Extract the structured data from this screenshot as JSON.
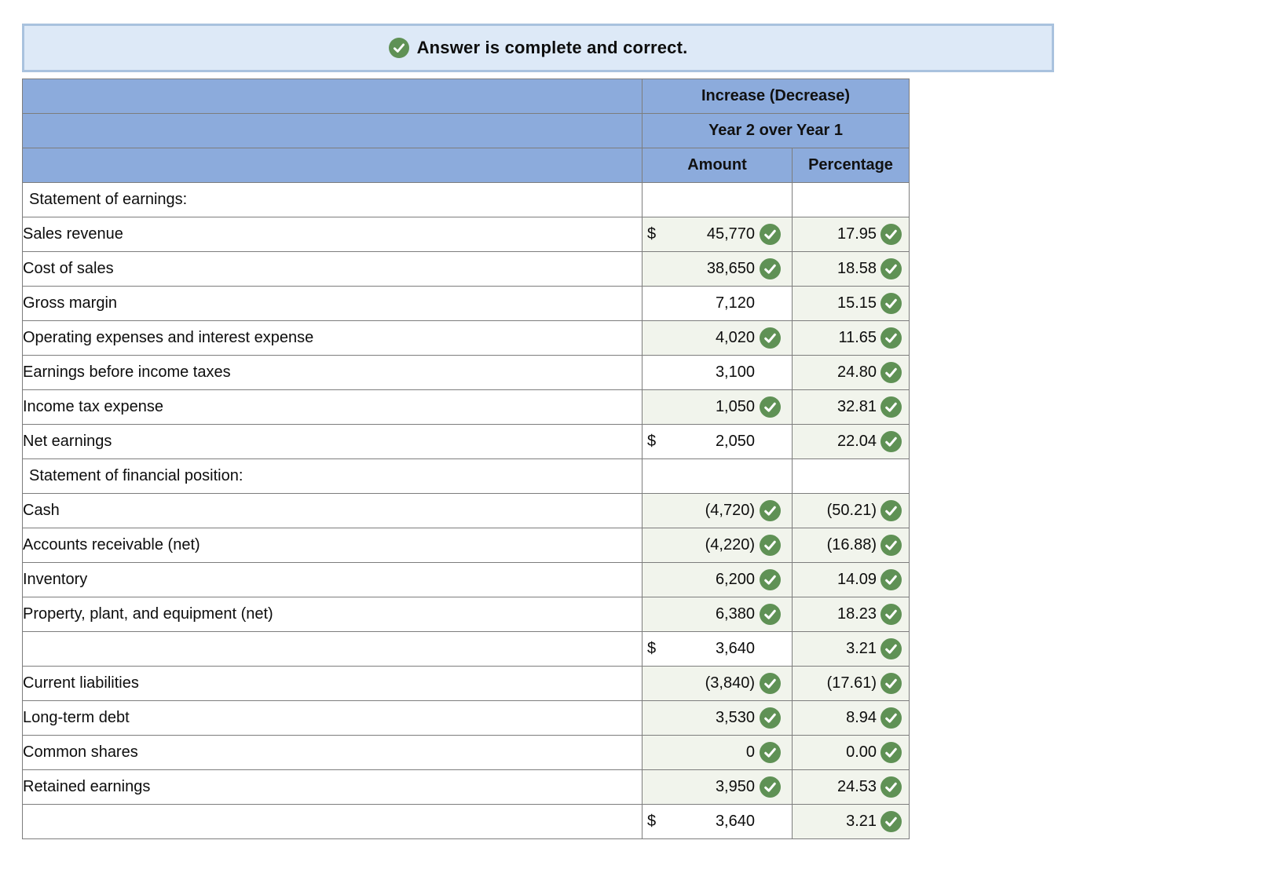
{
  "banner": {
    "icon": "check-circle-icon",
    "text": "Answer is complete and correct."
  },
  "colors": {
    "header_blue": "#8cabdc",
    "banner_bg": "#dde9f7",
    "banner_border": "#a9c2de",
    "input_cell_bg": "#f1f4ec",
    "check_green": "#5f9155",
    "grid_gray": "#7d7d7d"
  },
  "table": {
    "header": {
      "increase_decrease": "Increase (Decrease)",
      "year_over_year": "Year 2 over Year 1",
      "amount": "Amount",
      "percentage": "Percentage"
    },
    "rows": [
      {
        "label": "Statement of earnings:",
        "section": true,
        "dollar": "",
        "amount": "",
        "amount_check": false,
        "amount_style": "blank",
        "amount_border": "none",
        "pct": "",
        "pct_check": false,
        "pct_style": "blank"
      },
      {
        "label": "Sales revenue",
        "section": false,
        "dollar": "$",
        "amount": "45,770",
        "amount_check": true,
        "amount_style": "input",
        "amount_border": "none",
        "pct": "17.95",
        "pct_check": true,
        "pct_style": "input"
      },
      {
        "label": "Cost of sales",
        "section": false,
        "dollar": "",
        "amount": "38,650",
        "amount_check": true,
        "amount_style": "input",
        "amount_border": "single",
        "pct": "18.58",
        "pct_check": true,
        "pct_style": "input"
      },
      {
        "label": "Gross margin",
        "section": false,
        "dollar": "",
        "amount": "7,120",
        "amount_check": false,
        "amount_style": "plain",
        "amount_border": "none",
        "pct": "15.15",
        "pct_check": true,
        "pct_style": "input"
      },
      {
        "label": "Operating expenses and interest expense",
        "section": false,
        "dollar": "",
        "amount": "4,020",
        "amount_check": true,
        "amount_style": "input",
        "amount_border": "single",
        "pct": "11.65",
        "pct_check": true,
        "pct_style": "input"
      },
      {
        "label": "Earnings before income taxes",
        "section": false,
        "dollar": "",
        "amount": "3,100",
        "amount_check": false,
        "amount_style": "plain",
        "amount_border": "none",
        "pct": "24.80",
        "pct_check": true,
        "pct_style": "input"
      },
      {
        "label": "Income tax expense",
        "section": false,
        "dollar": "",
        "amount": "1,050",
        "amount_check": true,
        "amount_style": "input",
        "amount_border": "single",
        "pct": "32.81",
        "pct_check": true,
        "pct_style": "input"
      },
      {
        "label": "Net earnings",
        "section": false,
        "dollar": "$",
        "amount": "2,050",
        "amount_check": false,
        "amount_style": "plain",
        "amount_border": "double",
        "pct": "22.04",
        "pct_check": true,
        "pct_style": "input"
      },
      {
        "label": "Statement of financial position:",
        "section": true,
        "dollar": "",
        "amount": "",
        "amount_check": false,
        "amount_style": "blank",
        "amount_border": "none",
        "pct": "",
        "pct_check": false,
        "pct_style": "blank"
      },
      {
        "label": "Cash",
        "section": false,
        "dollar": "",
        "amount": "(4,720)",
        "amount_check": true,
        "amount_style": "input",
        "amount_border": "none",
        "pct": "(50.21)",
        "pct_check": true,
        "pct_style": "input"
      },
      {
        "label": "Accounts receivable (net)",
        "section": false,
        "dollar": "",
        "amount": "(4,220)",
        "amount_check": true,
        "amount_style": "input",
        "amount_border": "none",
        "pct": "(16.88)",
        "pct_check": true,
        "pct_style": "input"
      },
      {
        "label": "Inventory",
        "section": false,
        "dollar": "",
        "amount": "6,200",
        "amount_check": true,
        "amount_style": "input",
        "amount_border": "none",
        "pct": "14.09",
        "pct_check": true,
        "pct_style": "input"
      },
      {
        "label": "Property, plant, and equipment (net)",
        "section": false,
        "dollar": "",
        "amount": "6,380",
        "amount_check": true,
        "amount_style": "input",
        "amount_border": "single",
        "pct": "18.23",
        "pct_check": true,
        "pct_style": "input"
      },
      {
        "label": "",
        "section": false,
        "dollar": "$",
        "amount": "3,640",
        "amount_check": false,
        "amount_style": "plain",
        "amount_border": "double",
        "pct": "3.21",
        "pct_check": true,
        "pct_style": "input"
      },
      {
        "label": "Current liabilities",
        "section": false,
        "dollar": "",
        "amount": "(3,840)",
        "amount_check": true,
        "amount_style": "input",
        "amount_border": "none",
        "pct": "(17.61)",
        "pct_check": true,
        "pct_style": "input"
      },
      {
        "label": "Long-term debt",
        "section": false,
        "dollar": "",
        "amount": "3,530",
        "amount_check": true,
        "amount_style": "input",
        "amount_border": "none",
        "pct": "8.94",
        "pct_check": true,
        "pct_style": "input"
      },
      {
        "label": "Common shares",
        "section": false,
        "dollar": "",
        "amount": "0",
        "amount_check": true,
        "amount_style": "input",
        "amount_border": "none",
        "pct": "0.00",
        "pct_check": true,
        "pct_style": "input"
      },
      {
        "label": "Retained earnings",
        "section": false,
        "dollar": "",
        "amount": "3,950",
        "amount_check": true,
        "amount_style": "input",
        "amount_border": "single",
        "pct": "24.53",
        "pct_check": true,
        "pct_style": "input"
      },
      {
        "label": "",
        "section": false,
        "dollar": "$",
        "amount": "3,640",
        "amount_check": false,
        "amount_style": "plain",
        "amount_border": "double",
        "pct": "3.21",
        "pct_check": true,
        "pct_style": "input"
      }
    ]
  }
}
